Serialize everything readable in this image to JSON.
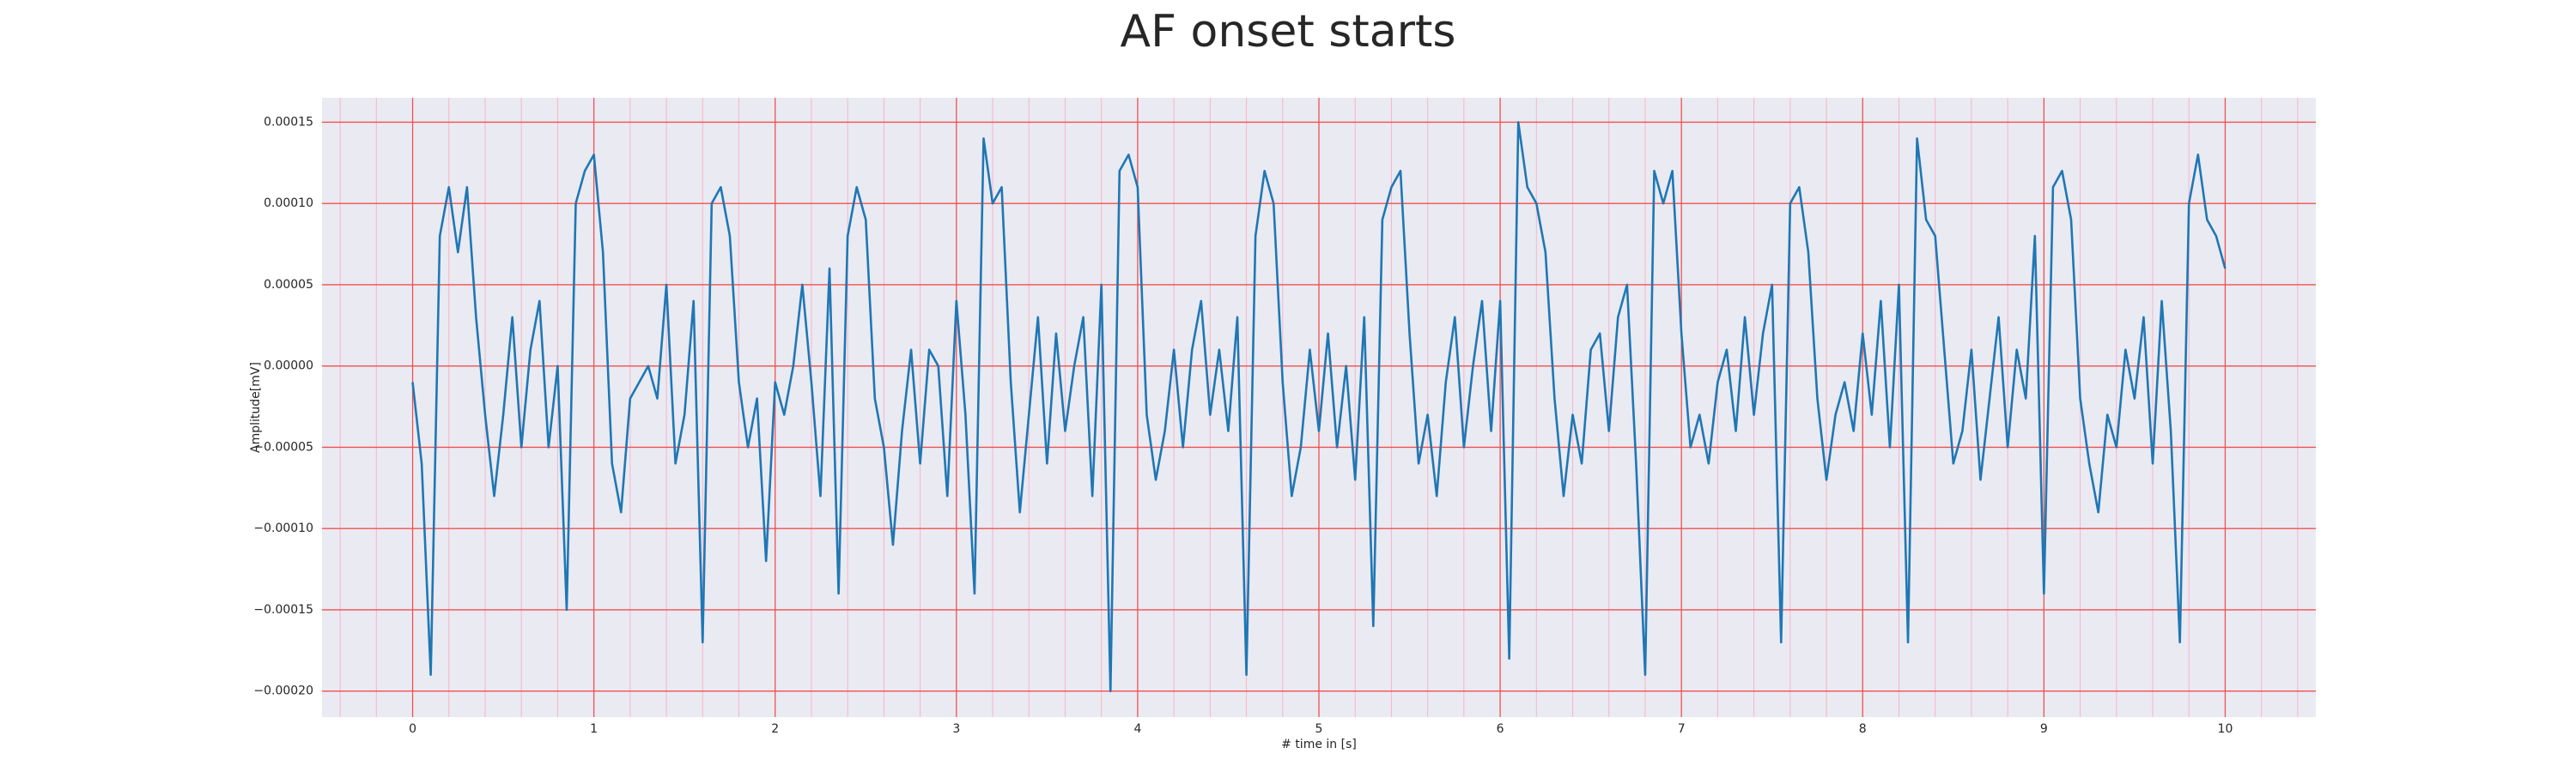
{
  "chart_data": {
    "type": "line",
    "title": "AF onset starts",
    "xlabel": "# time in [s]",
    "ylabel": "Amplitude[mV]",
    "color": "#1f77b4",
    "grid": true,
    "minor_grid": true,
    "xlim": [
      -0.5,
      10.5
    ],
    "ylim": [
      -0.000216,
      0.000165
    ],
    "xticks": [
      0,
      1,
      2,
      3,
      4,
      5,
      6,
      7,
      8,
      9,
      10
    ],
    "yticks": [
      {
        "value": 0.00015,
        "label": "0.00015"
      },
      {
        "value": 0.0001,
        "label": "0.00010"
      },
      {
        "value": 5e-05,
        "label": "0.00005"
      },
      {
        "value": 0,
        "label": "0.00000"
      },
      {
        "value": -5e-05,
        "label": "−0.00005"
      },
      {
        "value": -0.0001,
        "label": "−0.00010"
      },
      {
        "value": -0.00015,
        "label": "−0.00015"
      },
      {
        "value": -0.0002,
        "label": "−0.00020"
      }
    ],
    "x": [
      0,
      0.05,
      0.1,
      0.15,
      0.2,
      0.25,
      0.3,
      0.35,
      0.4,
      0.45,
      0.5,
      0.55,
      0.6,
      0.65,
      0.7,
      0.75,
      0.8,
      0.85,
      0.9,
      0.95,
      1,
      1.05,
      1.1,
      1.15,
      1.2,
      1.25,
      1.3,
      1.35,
      1.4,
      1.45,
      1.5,
      1.55,
      1.6,
      1.65,
      1.7,
      1.75,
      1.8,
      1.85,
      1.9,
      1.95,
      2,
      2.05,
      2.1,
      2.15,
      2.2,
      2.25,
      2.3,
      2.35,
      2.4,
      2.45,
      2.5,
      2.55,
      2.6,
      2.65,
      2.7,
      2.75,
      2.8,
      2.85,
      2.9,
      2.95,
      3,
      3.05,
      3.1,
      3.15,
      3.2,
      3.25,
      3.3,
      3.35,
      3.4,
      3.45,
      3.5,
      3.55,
      3.6,
      3.65,
      3.7,
      3.75,
      3.8,
      3.85,
      3.9,
      3.95,
      4,
      4.05,
      4.1,
      4.15,
      4.2,
      4.25,
      4.3,
      4.35,
      4.4,
      4.45,
      4.5,
      4.55,
      4.6,
      4.65,
      4.7,
      4.75,
      4.8,
      4.85,
      4.9,
      4.95,
      5,
      5.05,
      5.1,
      5.15,
      5.2,
      5.25,
      5.3,
      5.35,
      5.4,
      5.45,
      5.5,
      5.55,
      5.6,
      5.65,
      5.7,
      5.75,
      5.8,
      5.85,
      5.9,
      5.95,
      6,
      6.05,
      6.1,
      6.15,
      6.2,
      6.25,
      6.3,
      6.35,
      6.4,
      6.45,
      6.5,
      6.55,
      6.6,
      6.65,
      6.7,
      6.75,
      6.8,
      6.85,
      6.9,
      6.95,
      7,
      7.05,
      7.1,
      7.15,
      7.2,
      7.25,
      7.3,
      7.35,
      7.4,
      7.45,
      7.5,
      7.55,
      7.6,
      7.65,
      7.7,
      7.75,
      7.8,
      7.85,
      7.9,
      7.95,
      8,
      8.05,
      8.1,
      8.15,
      8.2,
      8.25,
      8.3,
      8.35,
      8.4,
      8.45,
      8.5,
      8.55,
      8.6,
      8.65,
      8.7,
      8.75,
      8.8,
      8.85,
      8.9,
      8.95,
      9,
      9.05,
      9.1,
      9.15,
      9.2,
      9.25,
      9.3,
      9.35,
      9.4,
      9.45,
      9.5,
      9.55,
      9.6,
      9.65,
      9.7,
      9.75,
      9.8,
      9.85,
      9.9,
      9.95,
      10
    ],
    "values": [
      -1e-05,
      -6e-05,
      -0.00019,
      8e-05,
      0.00011,
      7e-05,
      0.00011,
      3e-05,
      -3e-05,
      -8e-05,
      -3e-05,
      3e-05,
      -5e-05,
      1e-05,
      4e-05,
      -5e-05,
      0,
      -0.00015,
      0.0001,
      0.00012,
      0.00013,
      7e-05,
      -6e-05,
      -9e-05,
      -2e-05,
      -1e-05,
      0,
      -2e-05,
      5e-05,
      -6e-05,
      -3e-05,
      4e-05,
      -0.00017,
      0.0001,
      0.00011,
      8e-05,
      -1e-05,
      -5e-05,
      -2e-05,
      -0.00012,
      -1e-05,
      -3e-05,
      0,
      5e-05,
      -1e-05,
      -8e-05,
      6e-05,
      -0.00014,
      8e-05,
      0.00011,
      9e-05,
      -2e-05,
      -5e-05,
      -0.00011,
      -4e-05,
      1e-05,
      -6e-05,
      1e-05,
      0,
      -8e-05,
      4e-05,
      -3e-05,
      -0.00014,
      0.00014,
      0.0001,
      0.00011,
      -1e-05,
      -9e-05,
      -3e-05,
      3e-05,
      -6e-05,
      2e-05,
      -4e-05,
      0,
      3e-05,
      -8e-05,
      5e-05,
      -0.0002,
      0.00012,
      0.00013,
      0.00011,
      -3e-05,
      -7e-05,
      -4e-05,
      1e-05,
      -5e-05,
      1e-05,
      4e-05,
      -3e-05,
      1e-05,
      -4e-05,
      3e-05,
      -0.00019,
      8e-05,
      0.00012,
      0.0001,
      -1e-05,
      -8e-05,
      -5e-05,
      1e-05,
      -4e-05,
      2e-05,
      -5e-05,
      0,
      -7e-05,
      3e-05,
      -0.00016,
      9e-05,
      0.00011,
      0.00012,
      2e-05,
      -6e-05,
      -3e-05,
      -8e-05,
      -1e-05,
      3e-05,
      -5e-05,
      0,
      4e-05,
      -4e-05,
      4e-05,
      -0.00018,
      0.00015,
      0.00011,
      0.0001,
      7e-05,
      -2e-05,
      -8e-05,
      -3e-05,
      -6e-05,
      1e-05,
      2e-05,
      -4e-05,
      3e-05,
      5e-05,
      -6e-05,
      -0.00019,
      0.00012,
      0.0001,
      0.00012,
      2e-05,
      -5e-05,
      -3e-05,
      -6e-05,
      -1e-05,
      1e-05,
      -4e-05,
      3e-05,
      -3e-05,
      2e-05,
      5e-05,
      -0.00017,
      0.0001,
      0.00011,
      7e-05,
      -2e-05,
      -7e-05,
      -3e-05,
      -1e-05,
      -4e-05,
      2e-05,
      -3e-05,
      4e-05,
      -5e-05,
      5e-05,
      -0.00017,
      0.00014,
      9e-05,
      8e-05,
      1e-05,
      -6e-05,
      -4e-05,
      1e-05,
      -7e-05,
      -2e-05,
      3e-05,
      -5e-05,
      1e-05,
      -2e-05,
      8e-05,
      -0.00014,
      0.00011,
      0.00012,
      9e-05,
      -2e-05,
      -6e-05,
      -9e-05,
      -3e-05,
      -5e-05,
      1e-05,
      -2e-05,
      3e-05,
      -6e-05,
      4e-05,
      -4e-05,
      -0.00017,
      0.0001,
      0.00013,
      9e-05,
      8e-05,
      6e-05
    ]
  }
}
